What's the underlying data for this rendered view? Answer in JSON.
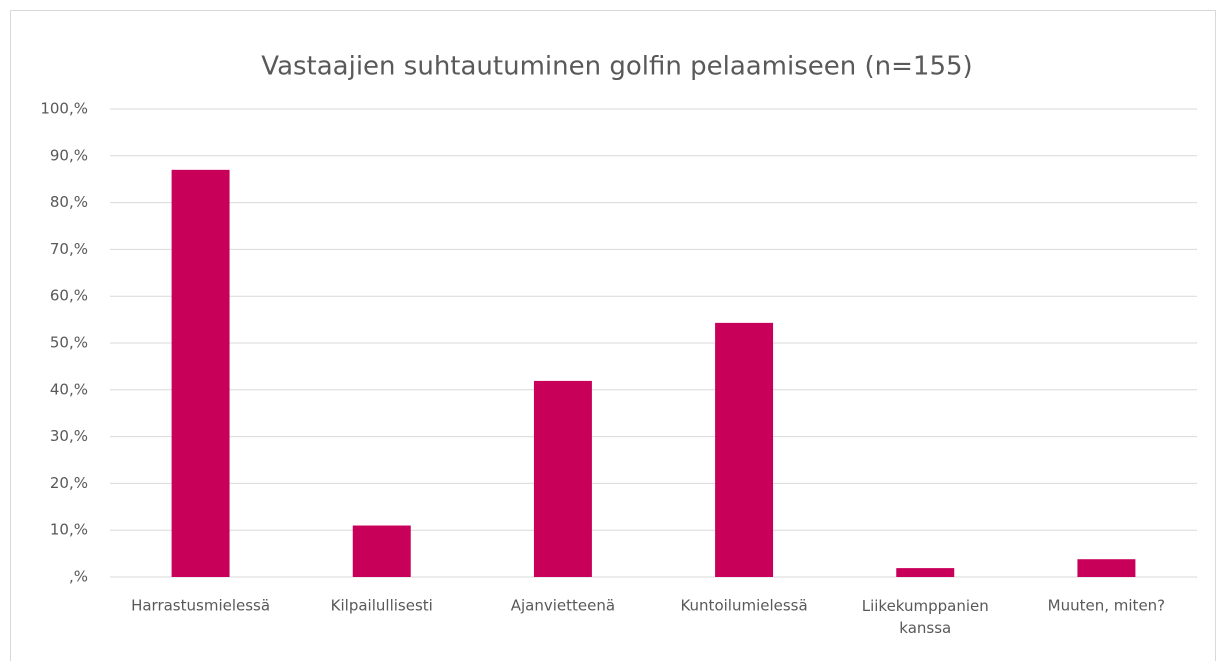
{
  "chart_data": {
    "type": "bar",
    "title": "Vastaajien suhtautuminen golfin pelaamiseen (n=155)",
    "categories": [
      "Harrastusmielessä",
      "Kilpailullisesti",
      "Ajanvietteenä",
      "Kuntoilumielessä",
      "Liikekumppanien kanssa",
      "Muuten, miten?"
    ],
    "values": [
      87.0,
      11.0,
      41.9,
      54.3,
      1.9,
      3.8
    ],
    "color": "#c8005a",
    "ylim": [
      0,
      100
    ],
    "yticks": [
      {
        "value": 0,
        "label": ",%"
      },
      {
        "value": 10,
        "label": "10,%"
      },
      {
        "value": 20,
        "label": "20,%"
      },
      {
        "value": 30,
        "label": "30,%"
      },
      {
        "value": 40,
        "label": "40,%"
      },
      {
        "value": 50,
        "label": "50,%"
      },
      {
        "value": 60,
        "label": "60,%"
      },
      {
        "value": 70,
        "label": "70,%"
      },
      {
        "value": 80,
        "label": "80,%"
      },
      {
        "value": 90,
        "label": "90,%"
      },
      {
        "value": 100,
        "label": "100,%"
      }
    ],
    "grid": true
  }
}
